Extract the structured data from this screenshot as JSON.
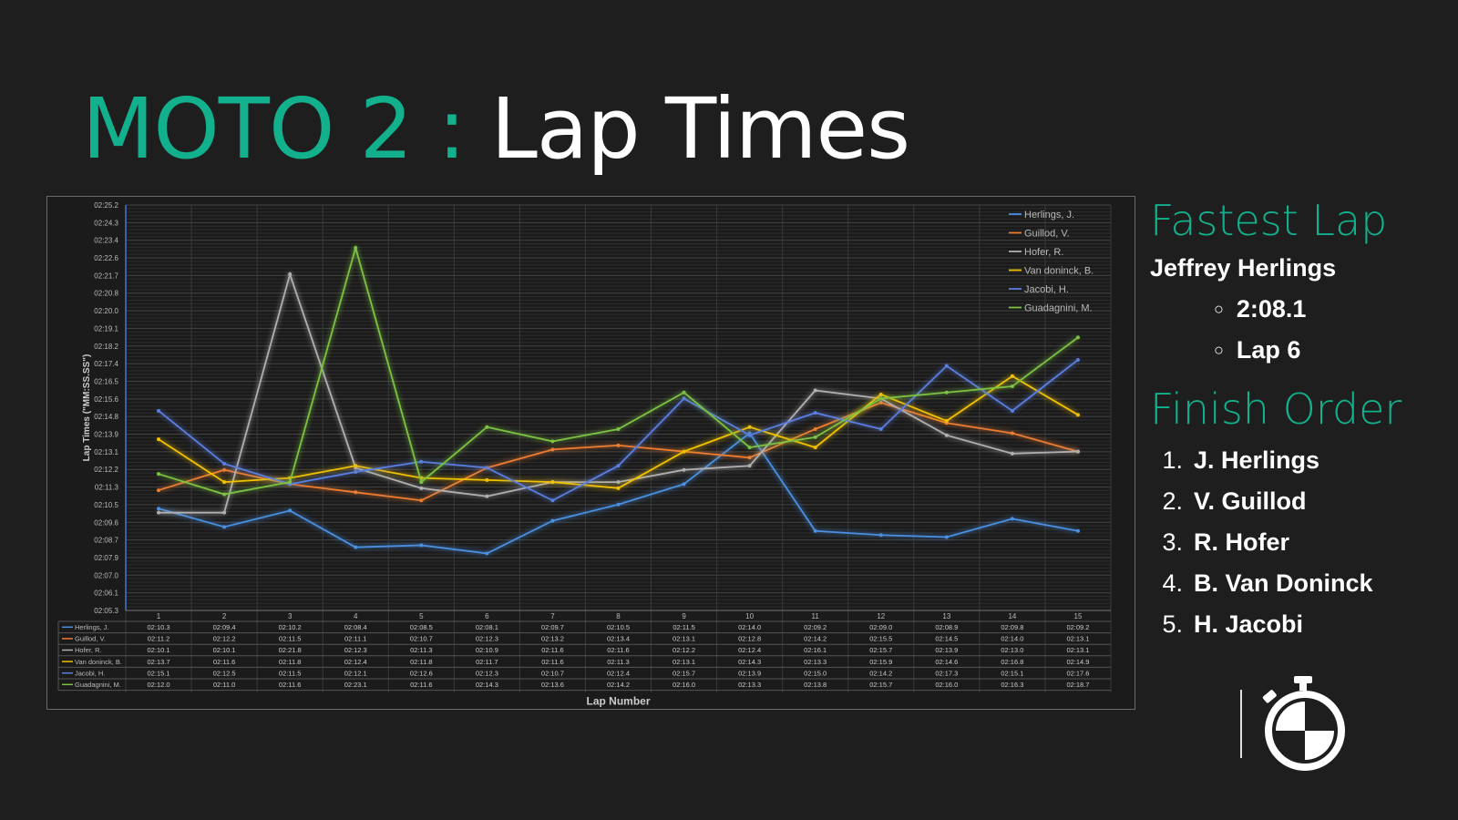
{
  "title": {
    "highlight": "MOTO 2 :",
    "rest": "Lap Times"
  },
  "fastest": {
    "heading": "Fastest Lap",
    "rider": "Jeffrey Herlings",
    "time": "2:08.1",
    "lap": "Lap 6"
  },
  "finish": {
    "heading": "Finish Order",
    "items": [
      {
        "n": "1.",
        "name": "J. Herlings"
      },
      {
        "n": "2.",
        "name": "V. Guillod"
      },
      {
        "n": "3.",
        "name": "R. Hofer"
      },
      {
        "n": "4.",
        "name": "B. Van Doninck"
      },
      {
        "n": "5.",
        "name": "H. Jacobi"
      }
    ]
  },
  "chart_data": {
    "type": "line",
    "xlabel": "Lap Number",
    "ylabel": "Lap Times (\"MM:SS.SS\")",
    "categories": [
      "1",
      "2",
      "3",
      "4",
      "5",
      "6",
      "7",
      "8",
      "9",
      "10",
      "11",
      "12",
      "13",
      "14",
      "15"
    ],
    "yticks": [
      "02:25.2",
      "02:24.3",
      "02:23.4",
      "02:22.6",
      "02:21.7",
      "02:20.8",
      "02:20.0",
      "02:19.1",
      "02:18.2",
      "02:17.4",
      "02:16.5",
      "02:15.6",
      "02:14.8",
      "02:13.9",
      "02:13.1",
      "02:12.2",
      "02:11.3",
      "02:10.5",
      "02:09.6",
      "02:08.7",
      "02:07.9",
      "02:07.0",
      "02:06.1",
      "02:05.3"
    ],
    "ylim_seconds": [
      125.3,
      145.2
    ],
    "legend": "top-right",
    "series": [
      {
        "name": "Herlings, J.",
        "color": "#4a90e2",
        "values": [
          "02:10.3",
          "02:09.4",
          "02:10.2",
          "02:08.4",
          "02:08.5",
          "02:08.1",
          "02:09.7",
          "02:10.5",
          "02:11.5",
          "02:14.0",
          "02:09.2",
          "02:09.0",
          "02:08.9",
          "02:09.8",
          "02:09.2"
        ]
      },
      {
        "name": "Guillod, V.",
        "color": "#ed7d31",
        "values": [
          "02:11.2",
          "02:12.2",
          "02:11.5",
          "02:11.1",
          "02:10.7",
          "02:12.3",
          "02:13.2",
          "02:13.4",
          "02:13.1",
          "02:12.8",
          "02:14.2",
          "02:15.5",
          "02:14.5",
          "02:14.0",
          "02:13.1"
        ]
      },
      {
        "name": "Hofer, R.",
        "color": "#b0b0b0",
        "values": [
          "02:10.1",
          "02:10.1",
          "02:21.8",
          "02:12.3",
          "02:11.3",
          "02:10.9",
          "02:11.6",
          "02:11.6",
          "02:12.2",
          "02:12.4",
          "02:16.1",
          "02:15.7",
          "02:13.9",
          "02:13.0",
          "02:13.1"
        ]
      },
      {
        "name": "Van doninck, B.",
        "color": "#f2c200",
        "values": [
          "02:13.7",
          "02:11.6",
          "02:11.8",
          "02:12.4",
          "02:11.8",
          "02:11.7",
          "02:11.6",
          "02:11.3",
          "02:13.1",
          "02:14.3",
          "02:13.3",
          "02:15.9",
          "02:14.6",
          "02:16.8",
          "02:14.9"
        ]
      },
      {
        "name": "Jacobi, H.",
        "color": "#5b7fe0",
        "values": [
          "02:15.1",
          "02:12.5",
          "02:11.5",
          "02:12.1",
          "02:12.6",
          "02:12.3",
          "02:10.7",
          "02:12.4",
          "02:15.7",
          "02:13.9",
          "02:15.0",
          "02:14.2",
          "02:17.3",
          "02:15.1",
          "02:17.6"
        ]
      },
      {
        "name": "Guadagnini, M.",
        "color": "#7dc242",
        "values": [
          "02:12.0",
          "02:11.0",
          "02:11.6",
          "02:23.1",
          "02:11.6",
          "02:14.3",
          "02:13.6",
          "02:14.2",
          "02:16.0",
          "02:13.3",
          "02:13.8",
          "02:15.7",
          "02:16.0",
          "02:16.3",
          "02:18.7"
        ]
      }
    ]
  }
}
